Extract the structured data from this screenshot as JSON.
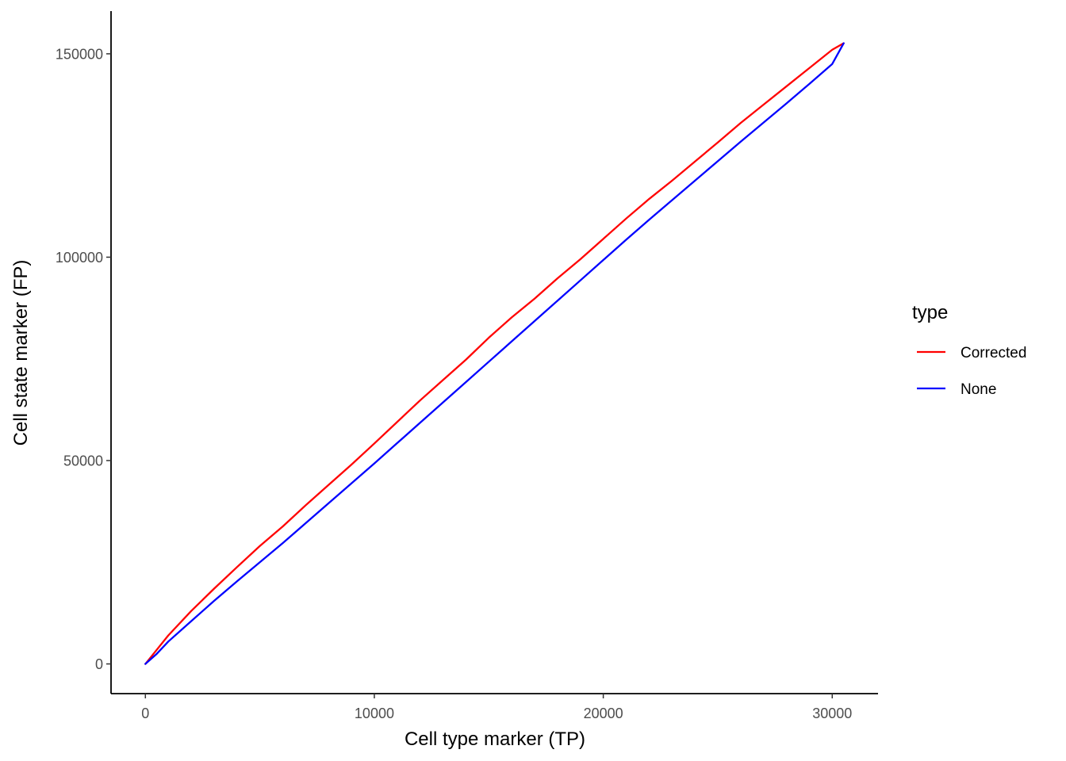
{
  "chart_data": {
    "type": "line",
    "title": "",
    "xlabel": "Cell type marker (TP)",
    "ylabel": "Cell state marker (FP)",
    "xlim": [
      -1500,
      32000
    ],
    "ylim": [
      -7300,
      160500
    ],
    "x_ticks": [
      0,
      10000,
      20000,
      30000
    ],
    "x_tick_labels": [
      "0",
      "10000",
      "20000",
      "30000"
    ],
    "y_ticks": [
      0,
      50000,
      100000,
      150000
    ],
    "y_tick_labels": [
      "0",
      "50000",
      "100000",
      "150000"
    ],
    "grid": false,
    "legend": {
      "title": "type",
      "placement": "right"
    },
    "series": [
      {
        "name": "Corrected",
        "color": "#ff0000",
        "x": [
          0,
          500,
          1000,
          2000,
          3000,
          4000,
          5000,
          6000,
          7000,
          8000,
          9000,
          10000,
          11000,
          12000,
          13000,
          14000,
          15000,
          16000,
          17000,
          18000,
          19000,
          20000,
          21000,
          22000,
          23000,
          24000,
          25000,
          26000,
          27000,
          28000,
          29000,
          30000,
          30500
        ],
        "y": [
          0,
          3500,
          7000,
          13000,
          18500,
          23800,
          29000,
          33800,
          39000,
          44000,
          49000,
          54200,
          59500,
          64800,
          69800,
          74800,
          80200,
          85200,
          89800,
          94800,
          99500,
          104500,
          109500,
          114300,
          118800,
          123500,
          128200,
          133000,
          137500,
          142000,
          146500,
          151000,
          152600
        ]
      },
      {
        "name": "None",
        "color": "#0000ff",
        "x": [
          0,
          500,
          1000,
          2000,
          3000,
          4000,
          5000,
          6000,
          7000,
          8000,
          9000,
          10000,
          11000,
          12000,
          13000,
          14000,
          15000,
          16000,
          17000,
          18000,
          19000,
          20000,
          21000,
          22000,
          23000,
          24000,
          25000,
          26000,
          27000,
          28000,
          29000,
          30000,
          30500
        ],
        "y": [
          0,
          2500,
          5500,
          10500,
          15500,
          20300,
          25000,
          29700,
          34600,
          39500,
          44400,
          49300,
          54300,
          59300,
          64300,
          69300,
          74300,
          79300,
          84300,
          89300,
          94300,
          99300,
          104300,
          109200,
          114000,
          118800,
          123600,
          128400,
          133100,
          137800,
          142600,
          147500,
          152600
        ]
      }
    ]
  }
}
